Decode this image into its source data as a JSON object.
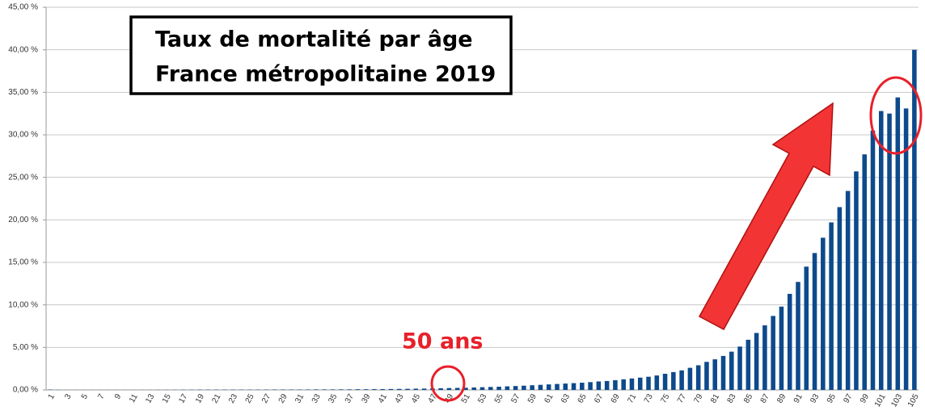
{
  "chart_data": {
    "type": "bar",
    "title": "Taux de mortalité par âge",
    "subtitle": "France métropolitaine 2019",
    "annotations": [
      "50 ans"
    ],
    "categories": [
      "1",
      null,
      "3",
      null,
      "5",
      null,
      "7",
      null,
      "9",
      null,
      "11",
      null,
      "13",
      null,
      "15",
      null,
      "17",
      null,
      "19",
      null,
      "21",
      null,
      "23",
      null,
      "25",
      null,
      "27",
      null,
      "29",
      null,
      "31",
      null,
      "33",
      null,
      "35",
      null,
      "37",
      null,
      "39",
      null,
      "41",
      null,
      "43",
      null,
      "45",
      null,
      "47",
      null,
      "49",
      null,
      "51",
      null,
      "53",
      null,
      "55",
      null,
      "57",
      null,
      "59",
      null,
      "61",
      null,
      "63",
      null,
      "65",
      null,
      "67",
      null,
      "69",
      null,
      "71",
      null,
      "73",
      null,
      "75",
      null,
      "77",
      null,
      "79",
      null,
      "81",
      null,
      "83",
      null,
      "85",
      null,
      "87",
      null,
      "89",
      null,
      "91",
      null,
      "93",
      null,
      "95",
      null,
      "97",
      null,
      "99",
      null,
      "101",
      null,
      "103",
      null,
      "105"
    ],
    "values": [
      0.04,
      0.02,
      0.01,
      0.01,
      0.01,
      0.01,
      0.01,
      0.01,
      0.01,
      0.01,
      0.01,
      0.01,
      0.01,
      0.02,
      0.02,
      0.02,
      0.03,
      0.03,
      0.04,
      0.04,
      0.04,
      0.04,
      0.04,
      0.04,
      0.04,
      0.04,
      0.04,
      0.05,
      0.05,
      0.05,
      0.05,
      0.05,
      0.06,
      0.06,
      0.06,
      0.07,
      0.07,
      0.08,
      0.08,
      0.09,
      0.1,
      0.11,
      0.12,
      0.13,
      0.15,
      0.16,
      0.18,
      0.2,
      0.22,
      0.24,
      0.26,
      0.29,
      0.32,
      0.35,
      0.38,
      0.42,
      0.46,
      0.5,
      0.55,
      0.6,
      0.65,
      0.7,
      0.75,
      0.8,
      0.85,
      0.92,
      1.0,
      1.05,
      1.15,
      1.25,
      1.35,
      1.45,
      1.55,
      1.7,
      1.9,
      2.1,
      2.3,
      2.6,
      2.9,
      3.3,
      3.6,
      4.0,
      4.5,
      5.1,
      5.9,
      6.7,
      7.6,
      8.7,
      9.8,
      11.3,
      12.7,
      14.5,
      16.1,
      17.9,
      19.7,
      21.5,
      23.4,
      25.7,
      27.7,
      30.5,
      32.8,
      32.5,
      34.4,
      33.1,
      40.0
    ],
    "color": "#0d4a8c",
    "ylim": [
      0,
      45
    ],
    "yticks": [
      {
        "value": 0,
        "label": "0,00 %"
      },
      {
        "value": 5,
        "label": "5,00 %"
      },
      {
        "value": 10,
        "label": "10,00 %"
      },
      {
        "value": 15,
        "label": "15,00 %"
      },
      {
        "value": 20,
        "label": "20,00 %"
      },
      {
        "value": 25,
        "label": "25,00 %"
      },
      {
        "value": 30,
        "label": "30,00 %"
      },
      {
        "value": 35,
        "label": "35,00 %"
      },
      {
        "value": 40,
        "label": "40,00 %"
      },
      {
        "value": 45,
        "label": "45,00 %"
      }
    ],
    "grid": true
  }
}
